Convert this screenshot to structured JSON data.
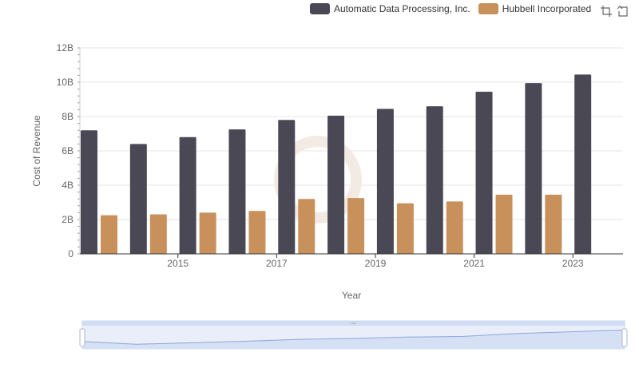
{
  "legend": {
    "items": [
      {
        "label": "Automatic Data Processing, Inc.",
        "color": "#4a4854"
      },
      {
        "label": "Hubbell Incorporated",
        "color": "#c8915b"
      }
    ]
  },
  "toolbox": {
    "icons": [
      "zoom-icon",
      "restore-icon"
    ]
  },
  "chart_data": {
    "type": "bar",
    "title": "",
    "xlabel": "Year",
    "ylabel": "Cost of Revenue",
    "categories": [
      "2014",
      "2015",
      "2016",
      "2017",
      "2018",
      "2019",
      "2020",
      "2021",
      "2022",
      "2023",
      "2024"
    ],
    "x_tick_labels": [
      "2015",
      "2017",
      "2019",
      "2021",
      "2023"
    ],
    "y_tick_labels": [
      "0",
      "2B",
      "4B",
      "6B",
      "8B",
      "10B",
      "12B"
    ],
    "ylim": [
      0,
      12000000000
    ],
    "grid": true,
    "legend_position": "top-right",
    "series": [
      {
        "name": "Automatic Data Processing, Inc.",
        "color": "#4a4854",
        "values": [
          7200000000,
          6400000000,
          6800000000,
          7250000000,
          7800000000,
          8050000000,
          8450000000,
          8600000000,
          9450000000,
          9950000000,
          10450000000
        ]
      },
      {
        "name": "Hubbell Incorporated",
        "color": "#c8915b",
        "values": [
          2250000000,
          2300000000,
          2400000000,
          2500000000,
          3200000000,
          3250000000,
          2950000000,
          3050000000,
          3450000000,
          3450000000,
          null
        ]
      }
    ],
    "data_zoom": {
      "start": 0,
      "end": 100
    }
  }
}
